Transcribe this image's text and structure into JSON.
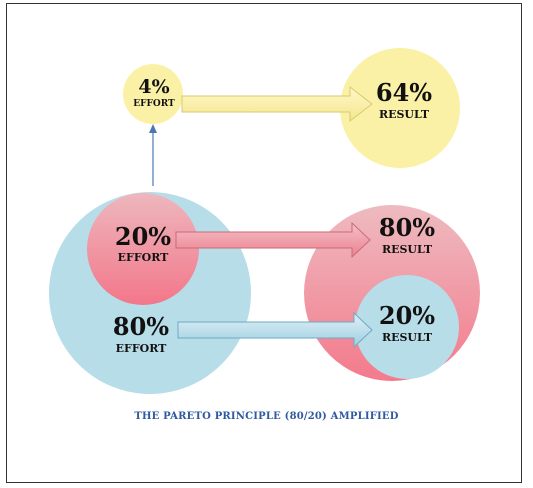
{
  "nodes": {
    "effort_4": {
      "pct": "4%",
      "label": "EFFORT"
    },
    "result_64": {
      "pct": "64%",
      "label": "RESULT"
    },
    "effort_20": {
      "pct": "20%",
      "label": "EFFORT"
    },
    "result_80": {
      "pct": "80%",
      "label": "RESULT"
    },
    "effort_80": {
      "pct": "80%",
      "label": "EFFORT"
    },
    "result_20": {
      "pct": "20%",
      "label": "RESULT"
    }
  },
  "caption": "THE PARETO PRINCIPLE (80/20) AMPLIFIED",
  "colors": {
    "yellow": "#fbf1a6",
    "blue": "#b7dde9",
    "pink_top": "#f2b8be",
    "pink_bottom": "#f0788a",
    "connector": "#4a78b0",
    "caption": "#2f5aa0"
  }
}
